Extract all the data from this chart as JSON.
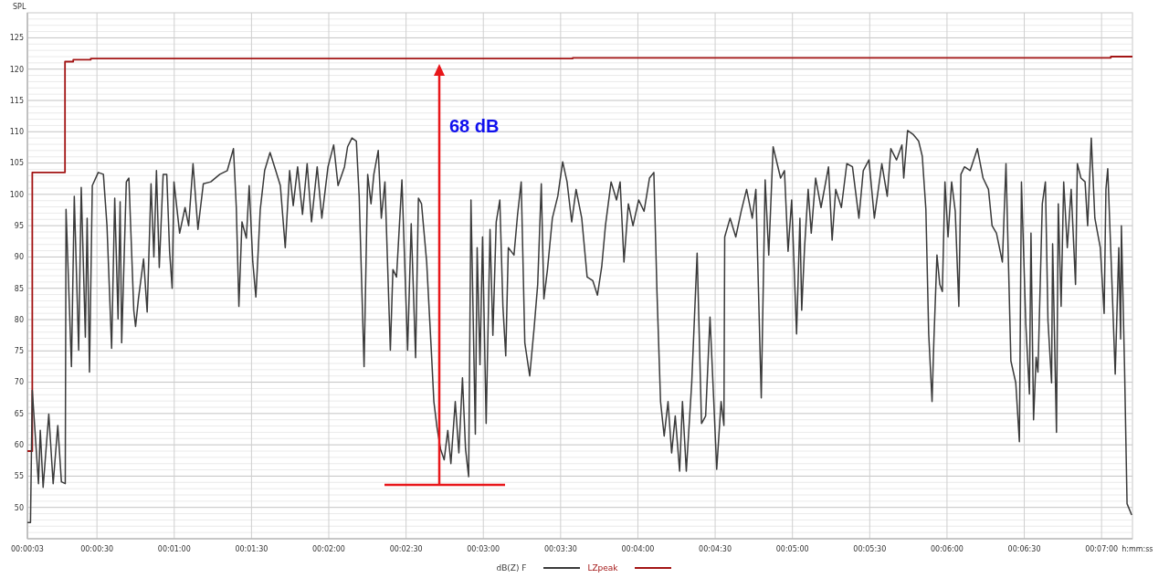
{
  "chart_data": {
    "type": "line",
    "ylabel": "SPL",
    "xlabel": "h:mm:ss",
    "xlim": [
      3,
      432
    ],
    "ylim": [
      45,
      129
    ],
    "xticks": [
      {
        "value": 3,
        "label": "00:00:03"
      },
      {
        "value": 30,
        "label": "00:00:30"
      },
      {
        "value": 60,
        "label": "00:01:00"
      },
      {
        "value": 90,
        "label": "00:01:30"
      },
      {
        "value": 120,
        "label": "00:02:00"
      },
      {
        "value": 150,
        "label": "00:02:30"
      },
      {
        "value": 180,
        "label": "00:03:00"
      },
      {
        "value": 210,
        "label": "00:03:30"
      },
      {
        "value": 240,
        "label": "00:04:00"
      },
      {
        "value": 270,
        "label": "00:04:30"
      },
      {
        "value": 300,
        "label": "00:05:00"
      },
      {
        "value": 330,
        "label": "00:05:30"
      },
      {
        "value": 360,
        "label": "00:06:00"
      },
      {
        "value": 390,
        "label": "00:06:30"
      },
      {
        "value": 420,
        "label": "00:07:00"
      }
    ],
    "yticks": [
      50,
      55,
      60,
      65,
      70,
      75,
      80,
      85,
      90,
      95,
      100,
      105,
      110,
      115,
      120,
      125
    ],
    "grid": true,
    "legend": "bottom",
    "annotations": [
      "68 dB"
    ],
    "series": [
      {
        "name": "dB(Z) F",
        "type": "line",
        "color": "#3a3a3a",
        "x": [
          3,
          4.2,
          4.9,
          7.3,
          8,
          9.1,
          11.3,
          13,
          14.8,
          16.2,
          17.7,
          18,
          20.1,
          21.2,
          22.9,
          23.9,
          25.5,
          26.2,
          27.1,
          28.2,
          30.5,
          32.5,
          33.9,
          35.7,
          36.9,
          38.2,
          39,
          39.6,
          41.4,
          42.4,
          44.3,
          45,
          46.1,
          48.1,
          49.5,
          51,
          52.1,
          53.1,
          54.2,
          55.7,
          57.1,
          58.2,
          59.2,
          59.9,
          62.1,
          64.2,
          65.6,
          67.3,
          69.2,
          71.3,
          74.2,
          77.7,
          80.6,
          83,
          84.1,
          85.1,
          86.3,
          88,
          89.1,
          90.5,
          91.7,
          93.4,
          95.1,
          97.2,
          99.4,
          101.2,
          103.1,
          104.8,
          106.2,
          107.9,
          109.8,
          111.6,
          113.3,
          115.5,
          117.3,
          119.7,
          121.9,
          123.6,
          126.1,
          127.3,
          129,
          130.7,
          131.8,
          133.7,
          135.1,
          136.4,
          137.5,
          139.2,
          140.4,
          141.8,
          143.9,
          144.9,
          146.3,
          148.4,
          150.6,
          152,
          153.7,
          154.8,
          156,
          158,
          159.8,
          160.8,
          162,
          163.4,
          164.8,
          166.2,
          167.4,
          169.1,
          170.5,
          171.9,
          173.1,
          174.3,
          175.2,
          176.9,
          177.6,
          178.7,
          179.7,
          181.1,
          182.6,
          183.7,
          185,
          186.4,
          187.6,
          188.7,
          189.7,
          191.9,
          193.3,
          194.7,
          196.1,
          198,
          199.7,
          201.1,
          202.5,
          203.5,
          204.9,
          206.8,
          208.9,
          210.8,
          212.5,
          214.3,
          216,
          218.2,
          220.3,
          222.5,
          224.3,
          226,
          227.4,
          229.6,
          231.7,
          233.1,
          234.6,
          236.3,
          238.1,
          240.3,
          242.4,
          244.5,
          246.2,
          247.4,
          248.8,
          250.2,
          251.7,
          253.1,
          254.5,
          256.2,
          257.3,
          258.8,
          260.9,
          263,
          264.7,
          266.3,
          268,
          269.4,
          270.6,
          272.3,
          273.4,
          273.7,
          275.8,
          278,
          280.1,
          282.2,
          284.4,
          285.8,
          287.9,
          289.4,
          290.8,
          292.5,
          295.4,
          296.9,
          298.3,
          299.7,
          301.6,
          302.9,
          303.6,
          304.7,
          306.1,
          307.3,
          309,
          311.1,
          314,
          315.4,
          316.8,
          319,
          321.1,
          323.3,
          325.8,
          327.5,
          329.7,
          331.8,
          334.7,
          336.8,
          338.2,
          340.4,
          342.5,
          343.2,
          344.7,
          346.8,
          349,
          350.4,
          351.8,
          352.9,
          354.2,
          354.9,
          356.1,
          357.2,
          358.2,
          359.2,
          360.4,
          361.8,
          363.2,
          364.6,
          365.4,
          366.8,
          369,
          371.8,
          374,
          376.1,
          377.5,
          379.2,
          381.5,
          382.9,
          384.8,
          386.7,
          388.1,
          388.9,
          390.6,
          392,
          392.6,
          393.6,
          394.6,
          395.3,
          397,
          398.2,
          399.2,
          400.6,
          401,
          402.5,
          403.2,
          404.3,
          405.3,
          406.7,
          408.2,
          409.9,
          410.6,
          412,
          413.6,
          414.6,
          416,
          417.4,
          419.5,
          421,
          421.7,
          422.4,
          423.9,
          425.3,
          426.7,
          427.4,
          427.7,
          428.9,
          429.9,
          431.7
        ],
        "values": [
          47.6,
          47.6,
          68.7,
          53.8,
          62.3,
          53.2,
          64.9,
          53.8,
          63.1,
          54.1,
          53.8,
          97.6,
          72.5,
          99.7,
          75.1,
          101.1,
          77.2,
          96.2,
          71.6,
          101.4,
          103.5,
          103.2,
          95,
          75.4,
          99.4,
          80.1,
          98.8,
          76.3,
          102,
          102.6,
          81.5,
          78.9,
          83.3,
          89.7,
          81.2,
          101.7,
          90,
          103.8,
          88.3,
          103.2,
          103.2,
          90.9,
          85,
          102,
          93.8,
          97.9,
          95,
          104.9,
          94.4,
          101.7,
          102,
          103.2,
          103.8,
          107.3,
          97.9,
          82.1,
          95.6,
          93,
          101.4,
          89.2,
          83.6,
          97.6,
          103.8,
          106.7,
          103.8,
          101.4,
          91.5,
          103.8,
          98.2,
          104.4,
          96.8,
          104.9,
          95.6,
          104.4,
          96.2,
          104.4,
          107.9,
          101.4,
          104.4,
          107.6,
          109,
          108.5,
          99.7,
          72.5,
          103.2,
          98.5,
          103.2,
          107,
          96.2,
          102,
          75.1,
          88,
          86.8,
          102.3,
          75.1,
          95.3,
          73.9,
          99.4,
          98.5,
          89.2,
          75.1,
          66.9,
          62.8,
          59.3,
          57.6,
          62.3,
          57,
          66.9,
          58.7,
          70.7,
          59.3,
          54.9,
          99.1,
          61.7,
          91.5,
          72.8,
          93.2,
          63.4,
          94.4,
          77.5,
          95.6,
          99.1,
          82.1,
          74.2,
          91.5,
          90.3,
          96.8,
          102,
          76.3,
          71,
          78.6,
          85.6,
          101.7,
          83.3,
          88,
          96.2,
          99.7,
          105.2,
          102,
          95.6,
          100.8,
          96.2,
          86.8,
          86.2,
          83.9,
          88.6,
          95,
          102,
          99.1,
          102,
          89.2,
          98.5,
          95,
          99.1,
          97.3,
          102.6,
          103.5,
          84.5,
          66.9,
          61.4,
          66.9,
          58.7,
          64.6,
          55.8,
          66.9,
          55.8,
          69.9,
          90.6,
          63.4,
          64.6,
          80.4,
          67.5,
          56.1,
          66.9,
          63.1,
          93.2,
          96.2,
          93.2,
          97.3,
          100.8,
          96.2,
          100.8,
          67.5,
          102.3,
          90.3,
          107.6,
          102.6,
          103.8,
          90.9,
          99.1,
          77.7,
          96.2,
          81.5,
          91.5,
          100.8,
          93.8,
          102.6,
          97.9,
          104.4,
          92.7,
          100.8,
          97.9,
          104.9,
          104.4,
          96.2,
          103.8,
          105.5,
          96.2,
          104.9,
          99.7,
          107.3,
          105.5,
          107.9,
          102.6,
          110.2,
          109.6,
          108.5,
          106.1,
          97.6,
          77.7,
          66.9,
          76.6,
          90.3,
          85.6,
          84.5,
          102,
          93.2,
          102,
          97.3,
          82.1,
          103.2,
          104.4,
          103.8,
          107.3,
          102.6,
          100.8,
          95,
          93.8,
          89.2,
          104.9,
          73.4,
          69.9,
          60.5,
          102,
          79.2,
          68.1,
          93.8,
          64,
          74,
          71.6,
          98.5,
          102,
          79.8,
          69.9,
          92.1,
          62,
          98.5,
          82.1,
          102,
          91.5,
          100.8,
          85.6,
          104.9,
          102.6,
          102,
          95,
          109,
          96.2,
          91.5,
          81,
          100.8,
          104.1,
          87.4,
          71.3,
          91.5,
          76.9,
          95,
          72.8,
          50.6,
          48.8
        ]
      },
      {
        "name": "LZpeak",
        "type": "step",
        "color": "#a31515",
        "x": [
          3,
          4.9,
          17.6,
          20.8,
          27.6,
          214.7,
          423.6,
          432
        ],
        "values": [
          59,
          103.5,
          121.2,
          121.5,
          121.7,
          121.8,
          122,
          122
        ]
      }
    ]
  }
}
